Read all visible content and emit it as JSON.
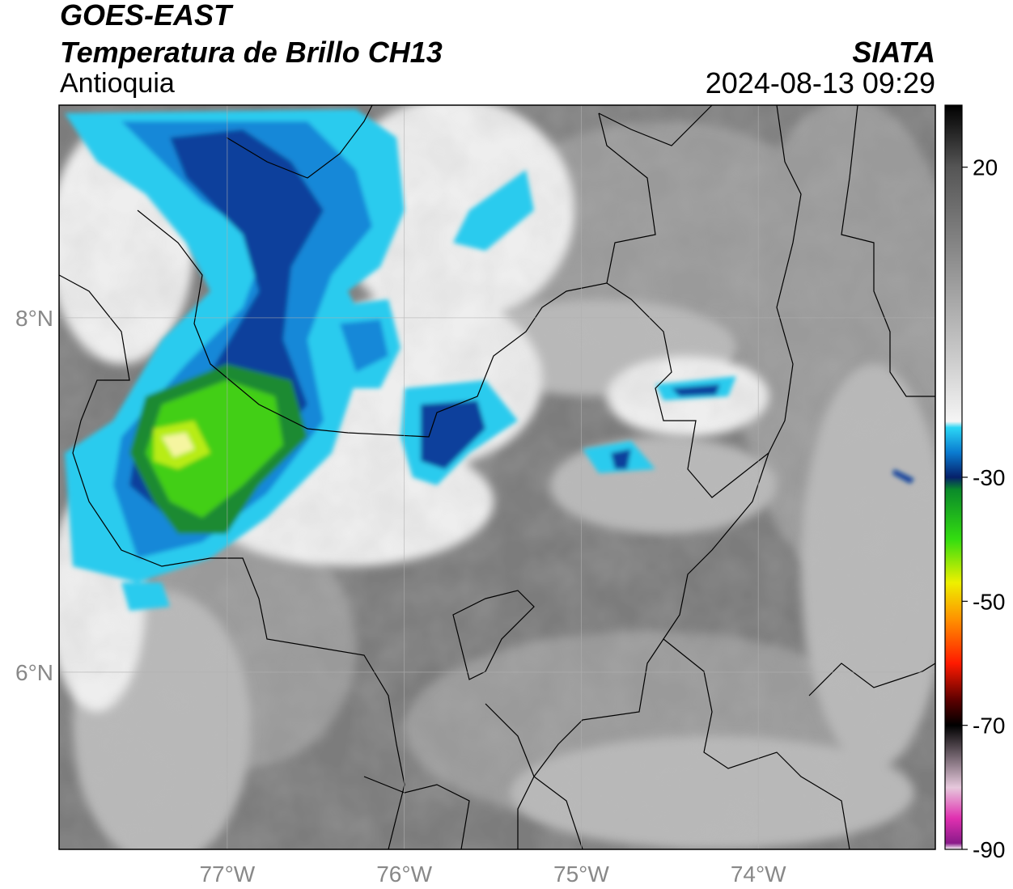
{
  "header": {
    "satellite": "GOES-EAST",
    "product": "Temperatura de Brillo CH13",
    "region": "Antioquia",
    "organization": "SIATA",
    "timestamp": "2024-08-13 09:29"
  },
  "map": {
    "lon_range": [
      -77.95,
      -73.0
    ],
    "lat_range": [
      5.0,
      9.2
    ],
    "lon_ticks": [
      {
        "value": -77,
        "label": "77°W"
      },
      {
        "value": -76,
        "label": "76°W"
      },
      {
        "value": -75,
        "label": "75°W"
      },
      {
        "value": -74,
        "label": "74°W"
      }
    ],
    "lat_ticks": [
      {
        "value": 8,
        "label": "8°N"
      },
      {
        "value": 6,
        "label": "6°N"
      }
    ],
    "gridlines": true,
    "colors": {
      "warm_ground": "#7a7a7a",
      "clouds_light": "#e8e8e8",
      "cold_cyan": "#22c6ea",
      "cold_blue": "#0a3d9a",
      "cold_green": "#44d010",
      "coldest_yellow": "#e8f000"
    }
  },
  "colorbar": {
    "range": [
      -90,
      30
    ],
    "ticks": [
      {
        "value": 20,
        "label": "20"
      },
      {
        "value": -30,
        "label": "-30"
      },
      {
        "value": -50,
        "label": "-50"
      },
      {
        "value": -70,
        "label": "-70"
      },
      {
        "value": -90,
        "label": "-90"
      }
    ],
    "stops": [
      {
        "value": 30,
        "color": "#000000"
      },
      {
        "value": 20,
        "color": "#555555"
      },
      {
        "value": -10,
        "color": "#c8c8c8"
      },
      {
        "value": -21,
        "color": "#f5f5f5"
      },
      {
        "value": -22,
        "color": "#2bd6f5"
      },
      {
        "value": -26,
        "color": "#0a7bd0"
      },
      {
        "value": -30,
        "color": "#06206a"
      },
      {
        "value": -32,
        "color": "#0a8a2a"
      },
      {
        "value": -40,
        "color": "#33dd10"
      },
      {
        "value": -47,
        "color": "#eef000"
      },
      {
        "value": -53,
        "color": "#ff9000"
      },
      {
        "value": -60,
        "color": "#ff1a00"
      },
      {
        "value": -66,
        "color": "#5a0000"
      },
      {
        "value": -70,
        "color": "#000000"
      },
      {
        "value": -80,
        "color": "#e6c8dc"
      },
      {
        "value": -85,
        "color": "#e030b0"
      },
      {
        "value": -89,
        "color": "#8a1a8a"
      },
      {
        "value": -90,
        "color": "#ffffff"
      }
    ]
  }
}
